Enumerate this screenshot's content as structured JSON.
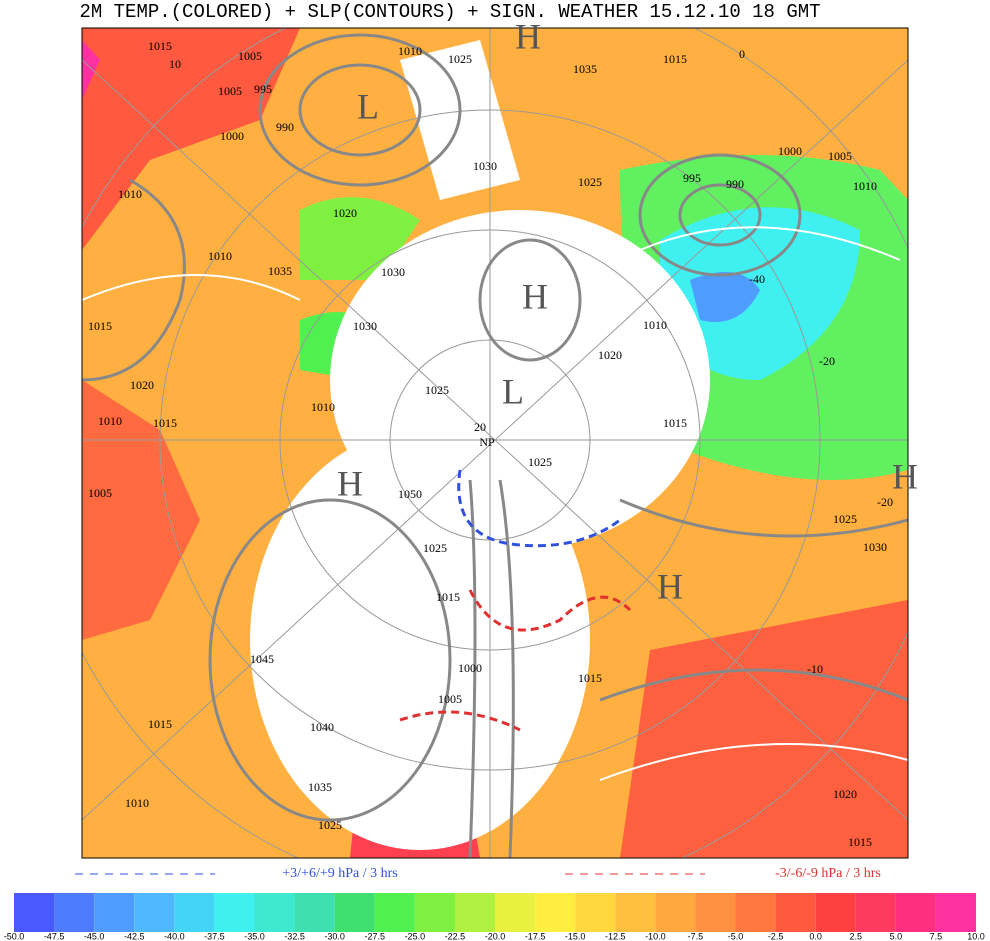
{
  "header": {
    "title": "2M TEMP.(COLORED) + SLP(CONTOURS) + SIGN. WEATHER 15.12.10 18  GMT"
  },
  "legend": {
    "rise": "+3/+6/+9 hPa / 3 hrs",
    "fall": "-3/-6/-9 hPa / 3 hrs"
  },
  "colorbar": {
    "labels": [
      "-50.0",
      "-47.5",
      "-45.0",
      "-42.5",
      "-40.0",
      "-37.5",
      "-35.0",
      "-32.5",
      "-30.0",
      "-27.5",
      "-25.0",
      "-22.5",
      "-20.0",
      "-17.5",
      "-15.0",
      "-12.5",
      "-10.0",
      "-7.5",
      "-5.0",
      "-2.5",
      "0.0",
      "2.5",
      "5.0",
      "7.5",
      "10.0"
    ]
  },
  "map": {
    "isobar_labels": [
      "1015",
      "10",
      "1005",
      "1010",
      "1025",
      "1035",
      "1015",
      "0",
      "1005",
      "995",
      "990",
      "1000",
      "1010",
      "1020",
      "1010",
      "1035",
      "1030",
      "1015",
      "1030",
      "1020",
      "1025",
      "1015",
      "1010",
      "1010",
      "1005",
      "1050",
      "1025",
      "1025",
      "1015",
      "1045",
      "1000",
      "1005",
      "1015",
      "1040",
      "1035",
      "1010",
      "1025",
      "1015",
      "1020",
      "1015",
      "1030",
      "1025",
      "995",
      "990",
      "1000",
      "1005",
      "1010",
      "1025",
      "1030",
      "1020",
      "1010",
      "1015"
    ],
    "temperature_labels": [
      "-10",
      "-20",
      "-20",
      "-40",
      "20"
    ],
    "pole": "NP",
    "pressure_centers": [
      "L",
      "L",
      "H",
      "H",
      "H",
      "H",
      "H"
    ]
  }
}
